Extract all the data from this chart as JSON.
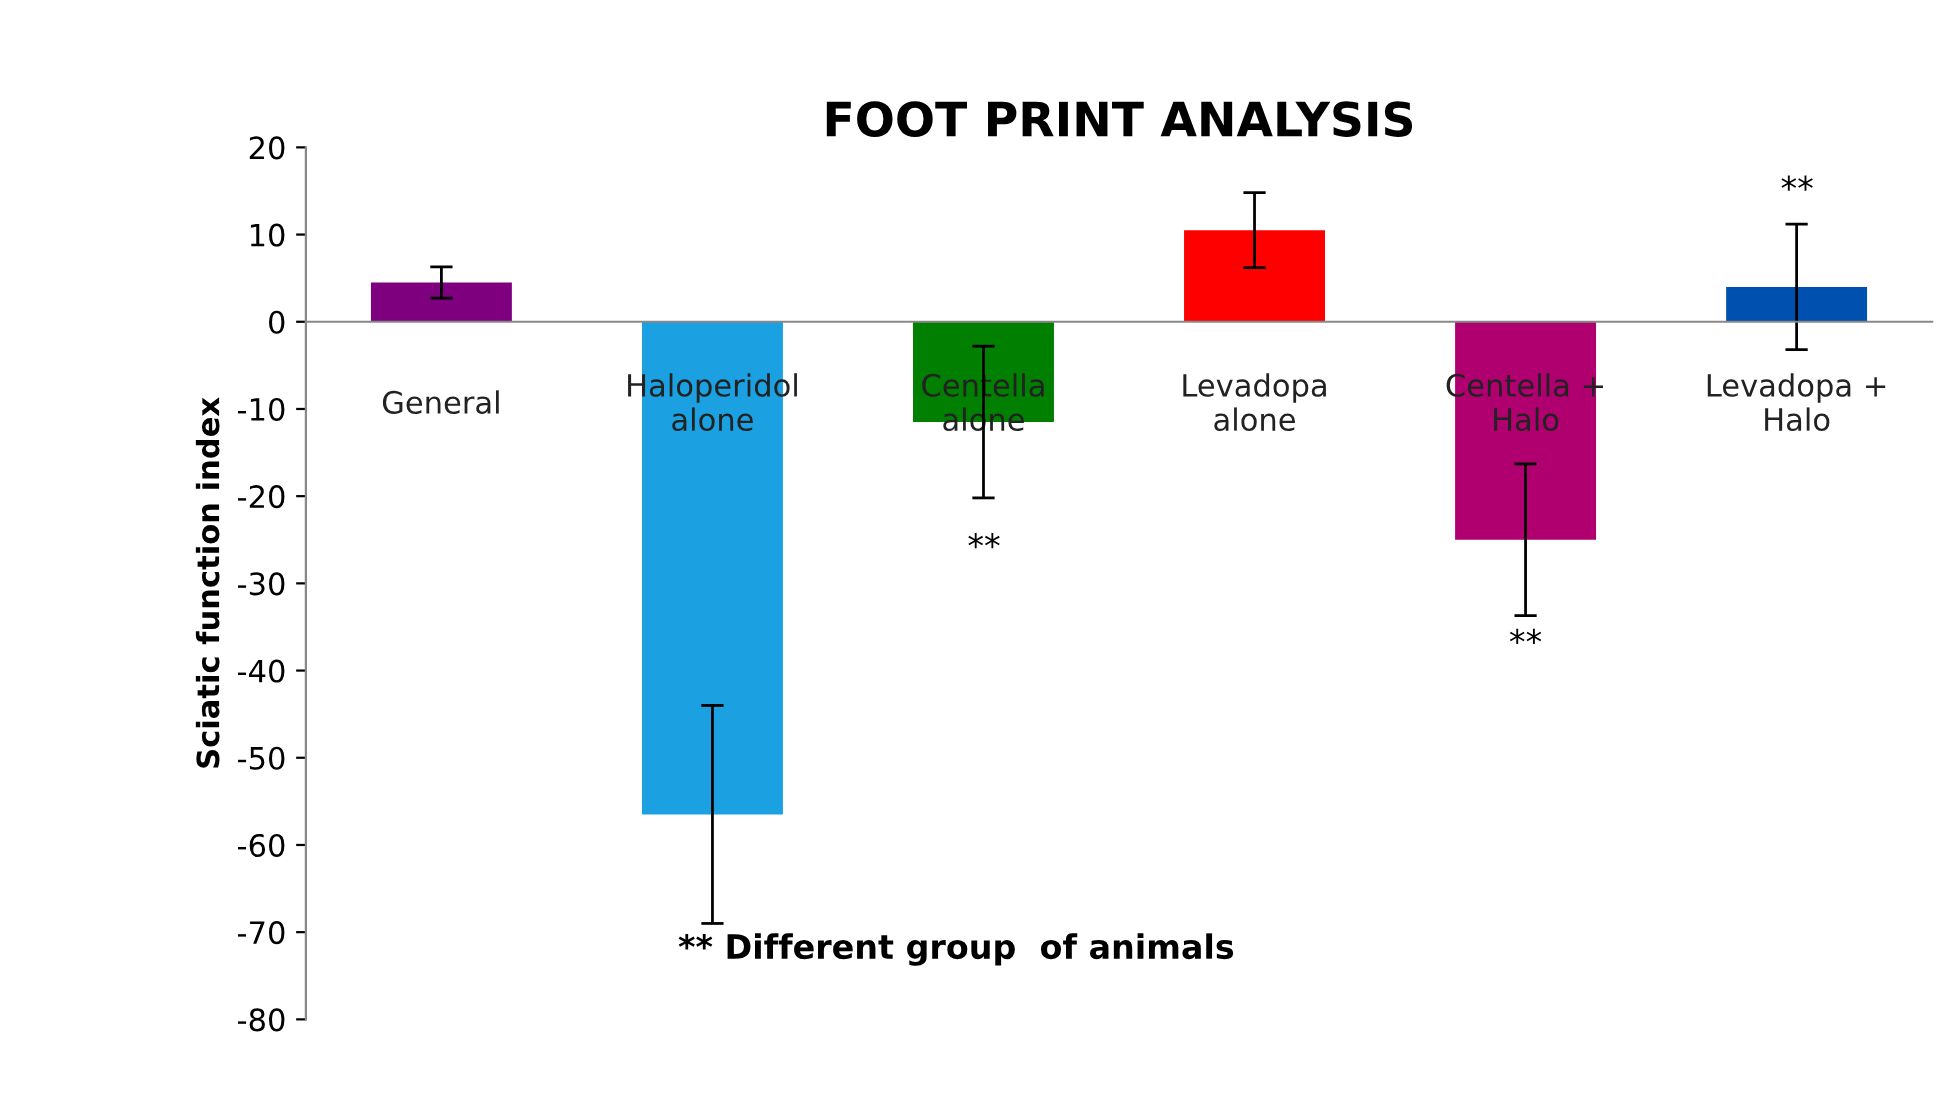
{
  "chart_data": {
    "type": "bar",
    "title": "FOOT PRINT ANALYSIS",
    "ylabel": "Sciatic function index",
    "categories": [
      "General",
      "Haloperidol\nalone",
      "Centella\nalone",
      "Levadopa\nalone",
      "Centella +\nHalo",
      "Levadopa +\nHalo"
    ],
    "values": [
      4.5,
      -56.5,
      -11.5,
      10.5,
      -25,
      4
    ],
    "colors": [
      "#7f007f",
      "#1ba1e2",
      "#007f00",
      "#ff0000",
      "#b0006f",
      "#0050b0"
    ],
    "errors": [
      1.8,
      12.5,
      8.7,
      4.3,
      8.7,
      7.2
    ],
    "ylim": [
      -80,
      20
    ],
    "yticks": [
      -80,
      -70,
      -60,
      -50,
      -40,
      -30,
      -20,
      -10,
      0,
      10,
      20
    ],
    "grid": false,
    "annotations": [
      "**",
      "**",
      "**",
      "** Different group  of animals"
    ]
  }
}
